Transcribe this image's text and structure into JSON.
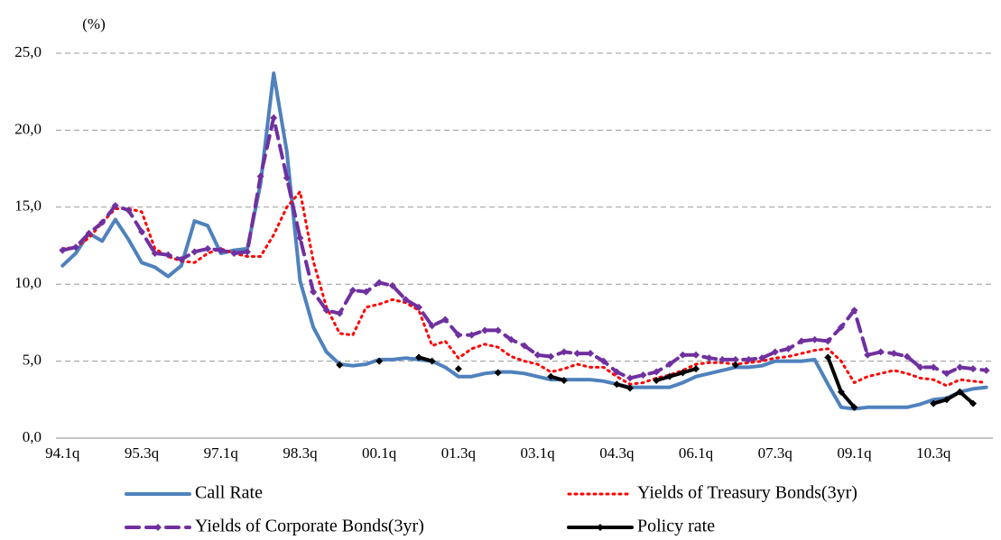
{
  "chart_data": {
    "type": "line",
    "y_label": "(%)",
    "categories": [
      "94.1q",
      null,
      null,
      null,
      null,
      null,
      "95.3q",
      null,
      null,
      null,
      null,
      null,
      "97.1q",
      null,
      null,
      null,
      null,
      null,
      "98.3q",
      null,
      null,
      null,
      null,
      null,
      "00.1q",
      null,
      null,
      null,
      null,
      null,
      "01.3q",
      null,
      null,
      null,
      null,
      null,
      "03.1q",
      null,
      null,
      null,
      null,
      null,
      "04.3q",
      null,
      null,
      null,
      null,
      null,
      "06.1q",
      null,
      null,
      null,
      null,
      null,
      "07.3q",
      null,
      null,
      null,
      null,
      null,
      "09.1q",
      null,
      null,
      null,
      null,
      null,
      "10.3q",
      null,
      null,
      null,
      null
    ],
    "ylim": [
      0,
      25
    ],
    "yticks": [
      {
        "value": 0,
        "label": "0,0"
      },
      {
        "value": 5,
        "label": "5,0"
      },
      {
        "value": 10,
        "label": "10,0"
      },
      {
        "value": 15,
        "label": "15,0"
      },
      {
        "value": 20,
        "label": "20,0"
      },
      {
        "value": 25,
        "label": "25,0"
      }
    ],
    "grid": true,
    "legend": "bottom",
    "series": [
      {
        "name": "Call Rate",
        "color": "#4f81bd",
        "line_style": "solid",
        "marker": "none",
        "values": [
          11.2,
          12.0,
          13.3,
          12.8,
          14.2,
          12.9,
          11.4,
          11.1,
          10.5,
          11.2,
          14.1,
          13.8,
          12.0,
          12.2,
          12.3,
          16.5,
          23.7,
          18.6,
          10.2,
          7.2,
          5.6,
          4.8,
          4.7,
          4.8,
          5.1,
          5.1,
          5.2,
          5.1,
          5.0,
          4.6,
          4.0,
          4.0,
          4.2,
          4.3,
          4.3,
          4.2,
          4.0,
          3.8,
          3.8,
          3.8,
          3.8,
          3.7,
          3.5,
          3.3,
          3.3,
          3.3,
          3.3,
          3.6,
          4.0,
          4.2,
          4.4,
          4.6,
          4.6,
          4.7,
          5.0,
          5.0,
          5.0,
          5.1,
          3.5,
          2.0,
          1.9,
          2.0,
          2.0,
          2.0,
          2.0,
          2.2,
          2.5,
          2.6,
          3.0,
          3.2,
          3.3
        ]
      },
      {
        "name": "Yields of Treasury Bonds(3yr)",
        "color": "#ff0000",
        "line_style": "dotted",
        "marker": "none",
        "values": [
          12.3,
          12.4,
          13.0,
          14.0,
          14.9,
          14.9,
          14.7,
          12.3,
          11.8,
          11.5,
          11.4,
          12.0,
          12.3,
          12.0,
          11.8,
          11.8,
          13.2,
          15.0,
          16.0,
          11.5,
          8.5,
          6.8,
          6.7,
          8.5,
          8.7,
          9.0,
          8.8,
          8.3,
          6.0,
          6.3,
          5.2,
          5.8,
          6.1,
          5.9,
          5.3,
          5.0,
          4.8,
          4.3,
          4.5,
          4.8,
          4.6,
          4.6,
          4.0,
          3.5,
          3.6,
          3.9,
          4.1,
          4.4,
          4.8,
          4.9,
          4.9,
          4.8,
          4.9,
          5.0,
          5.2,
          5.3,
          5.5,
          5.7,
          5.8,
          5.0,
          3.6,
          4.0,
          4.2,
          4.4,
          4.2,
          3.9,
          3.8,
          3.4,
          3.8,
          3.7,
          3.6
        ]
      },
      {
        "name": "Yields of Corporate Bonds(3yr)",
        "color": "#7030a0",
        "line_style": "dashed",
        "marker": "diamond",
        "values": [
          12.2,
          12.4,
          13.3,
          14.0,
          15.1,
          14.8,
          13.4,
          12.0,
          11.9,
          11.6,
          12.1,
          12.3,
          12.2,
          12.0,
          12.1,
          17.0,
          20.8,
          16.9,
          13.0,
          9.5,
          8.3,
          8.1,
          9.6,
          9.5,
          10.1,
          9.9,
          9.0,
          8.5,
          7.3,
          7.7,
          6.7,
          6.7,
          7.0,
          7.0,
          6.4,
          6.0,
          5.4,
          5.3,
          5.6,
          5.5,
          5.5,
          5.0,
          4.3,
          3.9,
          4.1,
          4.3,
          4.8,
          5.4,
          5.4,
          5.2,
          5.1,
          5.1,
          5.1,
          5.2,
          5.6,
          5.8,
          6.3,
          6.4,
          6.3,
          7.2,
          8.3,
          5.4,
          5.6,
          5.5,
          5.3,
          4.6,
          4.6,
          4.2,
          4.6,
          4.5,
          4.4
        ]
      },
      {
        "name": "Policy rate",
        "color": "#000000",
        "line_style": "solid",
        "marker": "diamond",
        "values": [
          null,
          null,
          null,
          null,
          null,
          null,
          null,
          null,
          null,
          null,
          null,
          null,
          null,
          null,
          null,
          null,
          null,
          null,
          null,
          null,
          null,
          4.75,
          null,
          null,
          5.0,
          null,
          null,
          5.25,
          5.0,
          null,
          4.5,
          null,
          null,
          4.25,
          null,
          null,
          null,
          4.0,
          3.75,
          null,
          null,
          null,
          3.5,
          3.25,
          null,
          3.75,
          4.0,
          4.25,
          4.5,
          null,
          null,
          4.75,
          null,
          null,
          null,
          null,
          null,
          null,
          5.25,
          3.0,
          2.0,
          null,
          null,
          null,
          null,
          null,
          2.25,
          2.5,
          3.0,
          2.25,
          null
        ]
      }
    ]
  }
}
